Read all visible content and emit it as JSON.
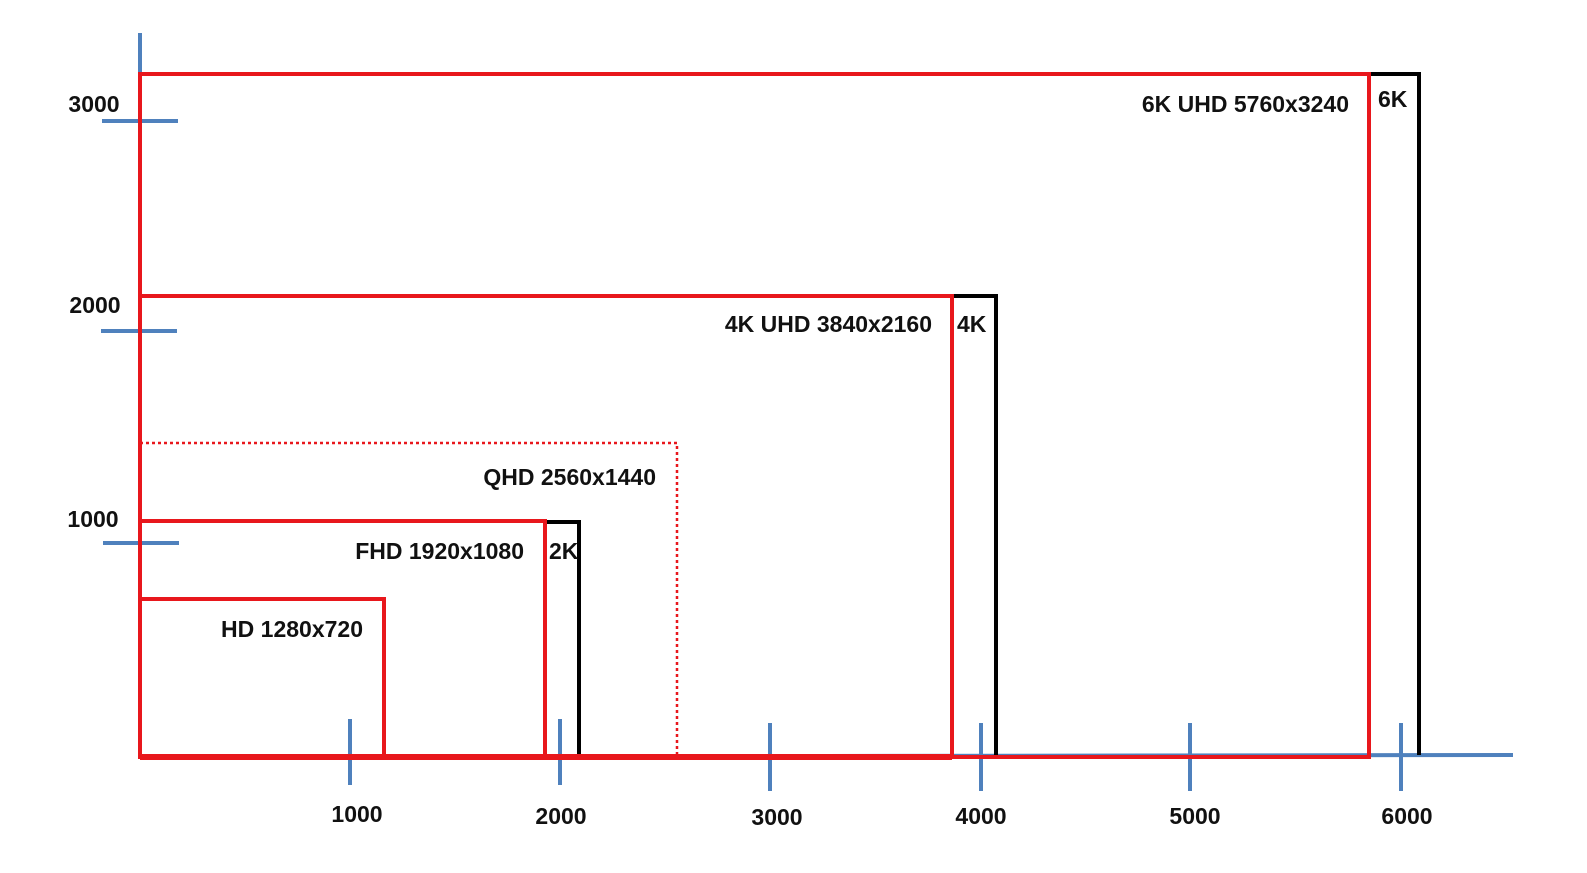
{
  "colors": {
    "axis": "#4F81BD",
    "resolution_frame": "#E8171C",
    "cinema_frame": "#000000",
    "label": "#111111"
  },
  "x_axis": {
    "ticks": [
      1000,
      2000,
      3000,
      4000,
      5000,
      6000
    ],
    "labels": [
      "1000",
      "2000",
      "3000",
      "4000",
      "5000",
      "6000"
    ]
  },
  "y_axis": {
    "ticks": [
      1000,
      2000,
      3000
    ],
    "labels": [
      "1000",
      "2000",
      "3000"
    ]
  },
  "frames": [
    {
      "id": "hd",
      "label": "HD 1280x720",
      "width": 1280,
      "height": 720,
      "style": "solid"
    },
    {
      "id": "fhd",
      "label": "FHD 1920x1080",
      "width": 1920,
      "height": 1080,
      "style": "solid"
    },
    {
      "id": "qhd",
      "label": "QHD 2560x1440",
      "width": 2560,
      "height": 1440,
      "style": "dotted"
    },
    {
      "id": "uhd4k",
      "label": "4K UHD 3840x2160",
      "width": 3840,
      "height": 2160,
      "style": "solid"
    },
    {
      "id": "uhd6k",
      "label": "6K UHD 5760x3240",
      "width": 5760,
      "height": 3240,
      "style": "solid"
    }
  ],
  "cinema_frames": [
    {
      "id": "2k",
      "label": "2K"
    },
    {
      "id": "4k",
      "label": "4K"
    },
    {
      "id": "6k",
      "label": "6K"
    }
  ]
}
